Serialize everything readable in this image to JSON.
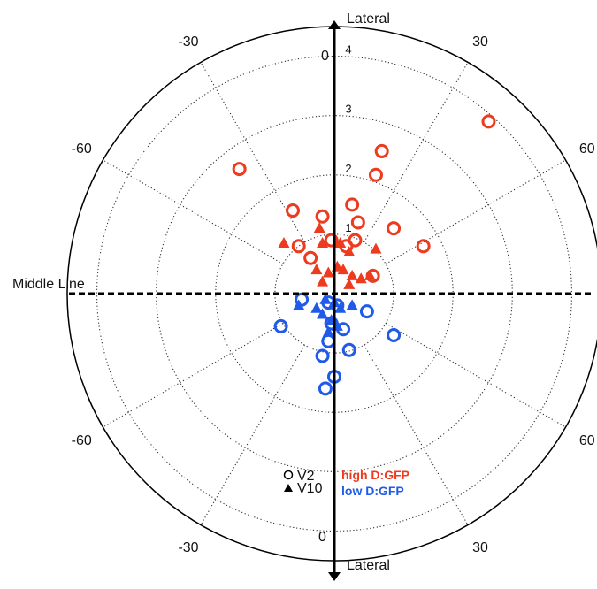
{
  "chart_data": {
    "type": "scatter",
    "polar": true,
    "axis_labels": {
      "top": "Lateral",
      "bottom": "Lateral",
      "left": "Middle Line"
    },
    "zero_labels": {
      "top": "0",
      "bottom": "0"
    },
    "angle_labels": [
      {
        "text": "-30",
        "deg": -30,
        "half": "upper"
      },
      {
        "text": "30",
        "deg": 30,
        "half": "upper"
      },
      {
        "text": "-60",
        "deg": -60,
        "half": "upper"
      },
      {
        "text": "60",
        "deg": 60,
        "half": "upper"
      },
      {
        "text": "-60",
        "deg": -60,
        "half": "lower"
      },
      {
        "text": "60",
        "deg": 60,
        "half": "lower"
      },
      {
        "text": "-30",
        "deg": -30,
        "half": "lower"
      },
      {
        "text": "30",
        "deg": 30,
        "half": "lower"
      }
    ],
    "radial_ticks": [
      "1",
      "2",
      "3",
      "4"
    ],
    "r_max": 4.5,
    "legend": {
      "markers": [
        {
          "label": "V2",
          "marker": "open-circle"
        },
        {
          "label": "V10",
          "marker": "filled-triangle"
        }
      ],
      "colors": [
        {
          "label": "high D:GFP",
          "color": "#ee3a1e"
        },
        {
          "label": "low D:GFP",
          "color": "#1f5ae8"
        }
      ]
    },
    "series": [
      {
        "name": "high D:GFP",
        "marker": "V2",
        "color": "#ee3a1e",
        "points": [
          [
            -1.6,
            2.1
          ],
          [
            2.6,
            2.9
          ],
          [
            0.8,
            2.4
          ],
          [
            0.7,
            2.0
          ],
          [
            -0.7,
            1.4
          ],
          [
            -0.2,
            1.3
          ],
          [
            0.3,
            1.5
          ],
          [
            0.4,
            1.2
          ],
          [
            1.0,
            1.1
          ],
          [
            1.5,
            0.8
          ],
          [
            -0.6,
            0.8
          ],
          [
            -0.4,
            0.6
          ],
          [
            -0.05,
            0.9
          ],
          [
            0.2,
            0.8
          ],
          [
            0.35,
            0.9
          ],
          [
            0.65,
            0.3
          ]
        ]
      },
      {
        "name": "high D:GFP",
        "marker": "V10",
        "color": "#ee3a1e",
        "points": [
          [
            -0.85,
            0.85
          ],
          [
            -0.25,
            1.1
          ],
          [
            -0.2,
            0.85
          ],
          [
            0.1,
            0.85
          ],
          [
            0.25,
            0.7
          ],
          [
            0.7,
            0.75
          ],
          [
            -0.3,
            0.4
          ],
          [
            -0.1,
            0.35
          ],
          [
            0.05,
            0.45
          ],
          [
            0.15,
            0.4
          ],
          [
            0.3,
            0.3
          ],
          [
            0.45,
            0.25
          ],
          [
            -0.2,
            0.2
          ],
          [
            0.25,
            0.15
          ],
          [
            0.6,
            0.3
          ]
        ]
      },
      {
        "name": "low D:GFP",
        "marker": "V2",
        "color": "#1f5ae8",
        "points": [
          [
            -0.55,
            -0.1
          ],
          [
            -0.9,
            -0.55
          ],
          [
            -0.1,
            -0.15
          ],
          [
            0.05,
            -0.2
          ],
          [
            0.55,
            -0.3
          ],
          [
            -0.05,
            -0.5
          ],
          [
            0.15,
            -0.6
          ],
          [
            -0.1,
            -0.8
          ],
          [
            0.25,
            -0.95
          ],
          [
            -0.2,
            -1.05
          ],
          [
            1.0,
            -0.7
          ],
          [
            0.0,
            -1.4
          ],
          [
            -0.15,
            -1.6
          ]
        ]
      },
      {
        "name": "low D:GFP",
        "marker": "V10",
        "color": "#1f5ae8",
        "points": [
          [
            -0.6,
            -0.2
          ],
          [
            -0.3,
            -0.25
          ],
          [
            -0.15,
            -0.1
          ],
          [
            0.0,
            -0.15
          ],
          [
            0.1,
            -0.25
          ],
          [
            0.3,
            -0.2
          ],
          [
            -0.2,
            -0.35
          ],
          [
            -0.05,
            -0.45
          ],
          [
            0.05,
            -0.55
          ],
          [
            -0.1,
            -0.65
          ]
        ]
      }
    ]
  }
}
